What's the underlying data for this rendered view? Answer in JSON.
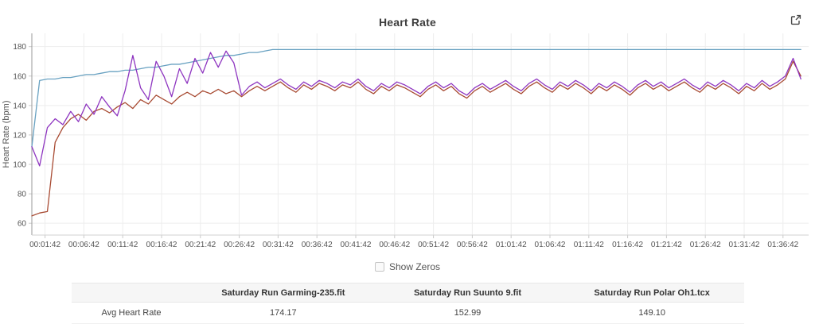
{
  "header": {
    "title": "Heart Rate"
  },
  "controls": {
    "show_zeros_label": "Show Zeros",
    "show_zeros_checked": false
  },
  "colors": {
    "garmin": "#68a1c1",
    "suunto": "#8e35c0",
    "polar": "#a84b33",
    "grid": "#ededed",
    "tick_text": "#545454"
  },
  "chart_data": {
    "type": "line",
    "title": "Heart Rate",
    "xlabel": "",
    "ylabel": "Heart Rate (bpm)",
    "ylim": [
      52,
      189
    ],
    "xlim_minutes": [
      0,
      100
    ],
    "grid": true,
    "legend_position": "none",
    "y_ticks": [
      60,
      80,
      100,
      120,
      140,
      160,
      180
    ],
    "x_ticks": [
      {
        "m": 1.7,
        "label": "00:01:42"
      },
      {
        "m": 6.7,
        "label": "00:06:42"
      },
      {
        "m": 11.7,
        "label": "00:11:42"
      },
      {
        "m": 16.7,
        "label": "00:16:42"
      },
      {
        "m": 21.7,
        "label": "00:21:42"
      },
      {
        "m": 26.7,
        "label": "00:26:42"
      },
      {
        "m": 31.7,
        "label": "00:31:42"
      },
      {
        "m": 36.7,
        "label": "00:36:42"
      },
      {
        "m": 41.7,
        "label": "00:41:42"
      },
      {
        "m": 46.7,
        "label": "00:46:42"
      },
      {
        "m": 51.7,
        "label": "00:51:42"
      },
      {
        "m": 56.7,
        "label": "00:56:42"
      },
      {
        "m": 61.7,
        "label": "01:01:42"
      },
      {
        "m": 66.7,
        "label": "01:06:42"
      },
      {
        "m": 71.7,
        "label": "01:11:42"
      },
      {
        "m": 76.7,
        "label": "01:16:42"
      },
      {
        "m": 81.7,
        "label": "01:21:42"
      },
      {
        "m": 86.7,
        "label": "01:26:42"
      },
      {
        "m": 91.7,
        "label": "01:31:42"
      },
      {
        "m": 96.7,
        "label": "01:36:42"
      }
    ],
    "x_minutes_step": 1,
    "series": [
      {
        "name": "Saturday Run Garming-235.fit",
        "color": "#68a1c1",
        "avg_bpm": 174.17,
        "values": [
          112,
          157,
          158,
          158,
          159,
          159,
          160,
          161,
          161,
          162,
          163,
          163,
          164,
          164,
          165,
          166,
          166,
          167,
          168,
          168,
          169,
          170,
          171,
          172,
          173,
          174,
          174,
          175,
          176,
          176,
          177,
          178,
          178,
          178,
          178,
          178,
          178,
          178,
          178,
          178,
          178,
          178,
          178,
          178,
          178,
          178,
          178,
          178,
          178,
          178,
          178,
          178,
          178,
          178,
          178,
          178,
          178,
          178,
          178,
          178,
          178,
          178,
          178,
          178,
          178,
          178,
          178,
          178,
          178,
          178,
          178,
          178,
          178,
          178,
          178,
          178,
          178,
          178,
          178,
          178,
          178,
          178,
          178,
          178,
          178,
          178,
          178,
          178,
          178,
          178,
          178,
          178,
          178,
          178,
          178,
          178,
          178,
          178,
          178,
          178
        ]
      },
      {
        "name": "Saturday Run Suunto 9.fit",
        "color": "#8e35c0",
        "avg_bpm": 152.99,
        "values": [
          112,
          99,
          125,
          131,
          127,
          136,
          129,
          141,
          134,
          146,
          139,
          133,
          150,
          174,
          152,
          144,
          170,
          160,
          146,
          165,
          155,
          172,
          162,
          176,
          166,
          177,
          169,
          147,
          153,
          156,
          152,
          155,
          158,
          154,
          151,
          156,
          153,
          157,
          155,
          152,
          156,
          154,
          158,
          153,
          150,
          155,
          152,
          156,
          154,
          151,
          148,
          153,
          156,
          152,
          155,
          150,
          147,
          152,
          155,
          151,
          154,
          157,
          153,
          150,
          155,
          158,
          154,
          151,
          156,
          153,
          157,
          154,
          150,
          155,
          152,
          156,
          153,
          149,
          154,
          157,
          153,
          156,
          152,
          155,
          158,
          154,
          151,
          156,
          153,
          157,
          154,
          150,
          155,
          152,
          157,
          153,
          156,
          160,
          172,
          158
        ]
      },
      {
        "name": "Saturday Run Polar Oh1.tcx",
        "color": "#a84b33",
        "avg_bpm": 149.1,
        "values": [
          65,
          67,
          68,
          115,
          125,
          131,
          134,
          130,
          136,
          138,
          135,
          139,
          142,
          138,
          144,
          141,
          147,
          144,
          141,
          146,
          149,
          146,
          150,
          148,
          151,
          148,
          150,
          146,
          150,
          153,
          150,
          153,
          156,
          152,
          149,
          154,
          151,
          155,
          153,
          150,
          154,
          152,
          156,
          151,
          148,
          153,
          150,
          154,
          152,
          149,
          146,
          151,
          154,
          150,
          153,
          148,
          145,
          150,
          153,
          149,
          152,
          155,
          151,
          148,
          153,
          156,
          152,
          149,
          154,
          151,
          155,
          152,
          148,
          153,
          150,
          154,
          151,
          147,
          152,
          155,
          151,
          154,
          150,
          153,
          156,
          152,
          149,
          154,
          151,
          155,
          152,
          148,
          153,
          150,
          155,
          151,
          154,
          158,
          170,
          160
        ]
      }
    ]
  },
  "table": {
    "headers": [
      "",
      "Saturday Run Garming-235.fit",
      "Saturday Run Suunto 9.fit",
      "Saturday Run Polar Oh1.tcx"
    ],
    "rows": [
      {
        "label": "Avg Heart Rate",
        "values": [
          "174.17",
          "152.99",
          "149.10"
        ]
      }
    ]
  }
}
